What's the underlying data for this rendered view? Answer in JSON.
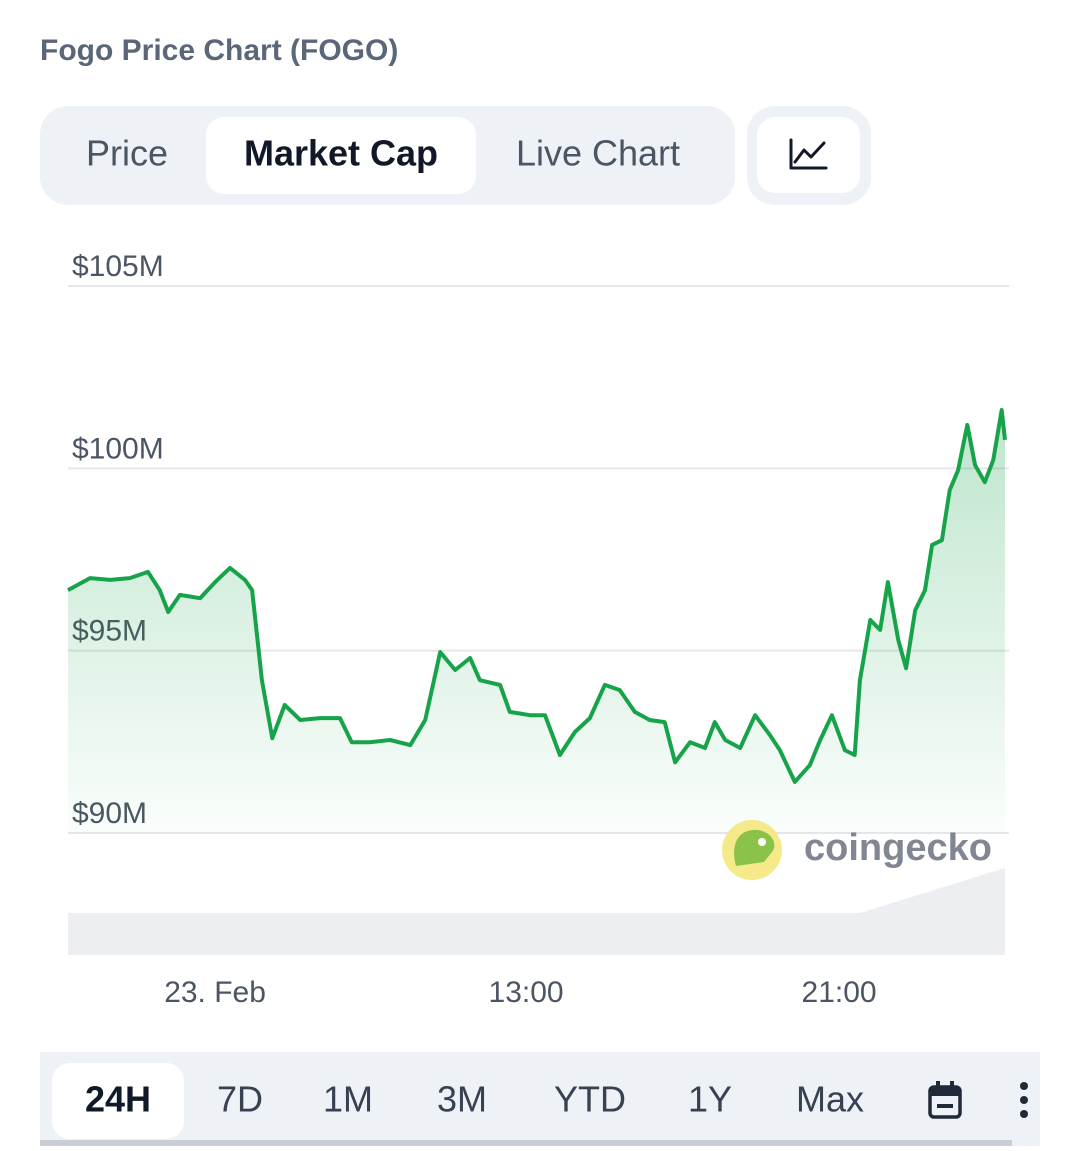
{
  "header": {
    "title": "Fogo Price Chart (FOGO)"
  },
  "tabs": {
    "items": [
      "Price",
      "Market Cap",
      "Live Chart"
    ],
    "active": 1
  },
  "chart_data": {
    "type": "line",
    "color": "#16a34a",
    "grid": true,
    "watermark": "coingecko",
    "xlim": [
      0,
      1440
    ],
    "xticks": [
      {
        "value": 226,
        "label": "23. Feb"
      },
      {
        "value": 704,
        "label": "13:00"
      },
      {
        "value": 1185,
        "label": "21:00"
      }
    ],
    "ylim": [
      90,
      105
    ],
    "yticks": [
      {
        "value": 105,
        "label": "$105M"
      },
      {
        "value": 100,
        "label": "$100M"
      },
      {
        "value": 95,
        "label": "$95M"
      },
      {
        "value": 90,
        "label": "$90M"
      }
    ],
    "x": [
      0,
      34,
      65,
      95,
      123,
      141,
      154,
      172,
      203,
      226,
      249,
      272,
      283,
      298,
      314,
      333,
      357,
      387,
      418,
      436,
      464,
      495,
      526,
      549,
      572,
      595,
      618,
      633,
      664,
      679,
      710,
      733,
      756,
      779,
      802,
      825,
      848,
      871,
      894,
      917,
      933,
      956,
      979,
      994,
      1010,
      1033,
      1056,
      1079,
      1094,
      1117,
      1140,
      1156,
      1174,
      1194,
      1209,
      1217,
      1233,
      1248,
      1260,
      1276,
      1288,
      1302,
      1317,
      1328,
      1343,
      1355,
      1368,
      1382,
      1394,
      1409,
      1422,
      1435,
      1440
    ],
    "values": [
      96.66,
      96.99,
      96.94,
      96.99,
      97.16,
      96.66,
      96.06,
      96.53,
      96.44,
      96.88,
      97.27,
      96.94,
      96.66,
      94.19,
      92.6,
      93.51,
      93.1,
      93.15,
      93.15,
      92.49,
      92.49,
      92.55,
      92.41,
      93.1,
      94.96,
      94.47,
      94.8,
      94.19,
      94.06,
      93.32,
      93.23,
      93.23,
      92.14,
      92.77,
      93.15,
      94.06,
      93.92,
      93.32,
      93.1,
      93.04,
      91.94,
      92.49,
      92.33,
      93.04,
      92.55,
      92.33,
      93.23,
      92.68,
      92.27,
      91.4,
      91.86,
      92.55,
      93.23,
      92.27,
      92.14,
      94.19,
      95.84,
      95.57,
      96.88,
      95.29,
      94.52,
      96.11,
      96.66,
      97.9,
      98.03,
      99.4,
      99.95,
      101.19,
      100.09,
      99.62,
      100.23,
      101.6,
      100.78
    ]
  },
  "ranges": {
    "items": [
      "24H",
      "7D",
      "1M",
      "3M",
      "YTD",
      "1Y",
      "Max"
    ],
    "active": 0
  }
}
